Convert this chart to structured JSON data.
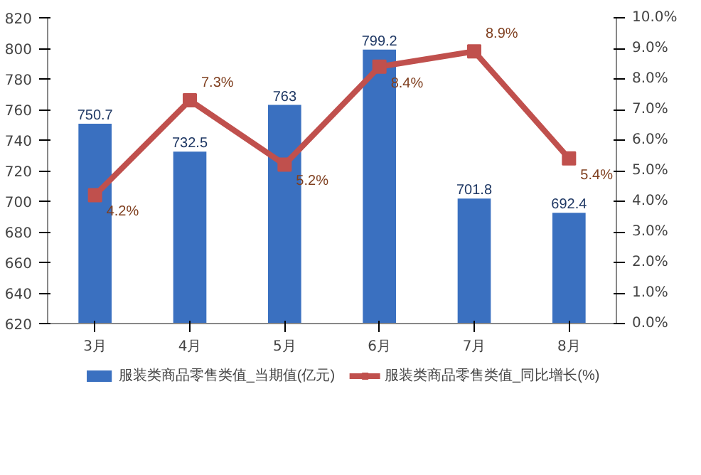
{
  "chart_data": {
    "type": "bar",
    "categories": [
      "3月",
      "4月",
      "5月",
      "6月",
      "7月",
      "8月"
    ],
    "series": [
      {
        "name": "服装类商品零售类值_当期值(亿元)",
        "color": "#3a70c0",
        "values": [
          750.7,
          732.5,
          763,
          799.2,
          701.8,
          692.4
        ],
        "value_labels": [
          "750.7",
          "732.5",
          "763",
          "799.2",
          "701.8",
          "692.4"
        ]
      },
      {
        "name": "服装类商品零售类值_同比增长(%)",
        "type": "line",
        "axis": "y2",
        "color": "#c0504d",
        "marker": "square",
        "values": [
          4.2,
          7.3,
          5.2,
          8.4,
          8.9,
          5.4
        ],
        "value_labels": [
          "4.2%",
          "7.3%",
          "5.2%",
          "8.4%",
          "8.9%",
          "5.4%"
        ]
      }
    ],
    "ylim": [
      620,
      820
    ],
    "yticks": [
      620,
      640,
      660,
      680,
      700,
      720,
      740,
      760,
      780,
      800,
      820
    ],
    "y2lim": [
      0,
      10
    ],
    "y2ticks": [
      {
        "value": 0,
        "label": "0.0%"
      },
      {
        "value": 1,
        "label": "1.0%"
      },
      {
        "value": 2,
        "label": "2.0%"
      },
      {
        "value": 3,
        "label": "3.0%"
      },
      {
        "value": 4,
        "label": "4.0%"
      },
      {
        "value": 5,
        "label": "5.0%"
      },
      {
        "value": 6,
        "label": "6.0%"
      },
      {
        "value": 7,
        "label": "7.0%"
      },
      {
        "value": 8,
        "label": "8.0%"
      },
      {
        "value": 9,
        "label": "9.0%"
      },
      {
        "value": 10,
        "label": "10.0%"
      }
    ],
    "legend": "bottom",
    "grid": false
  }
}
